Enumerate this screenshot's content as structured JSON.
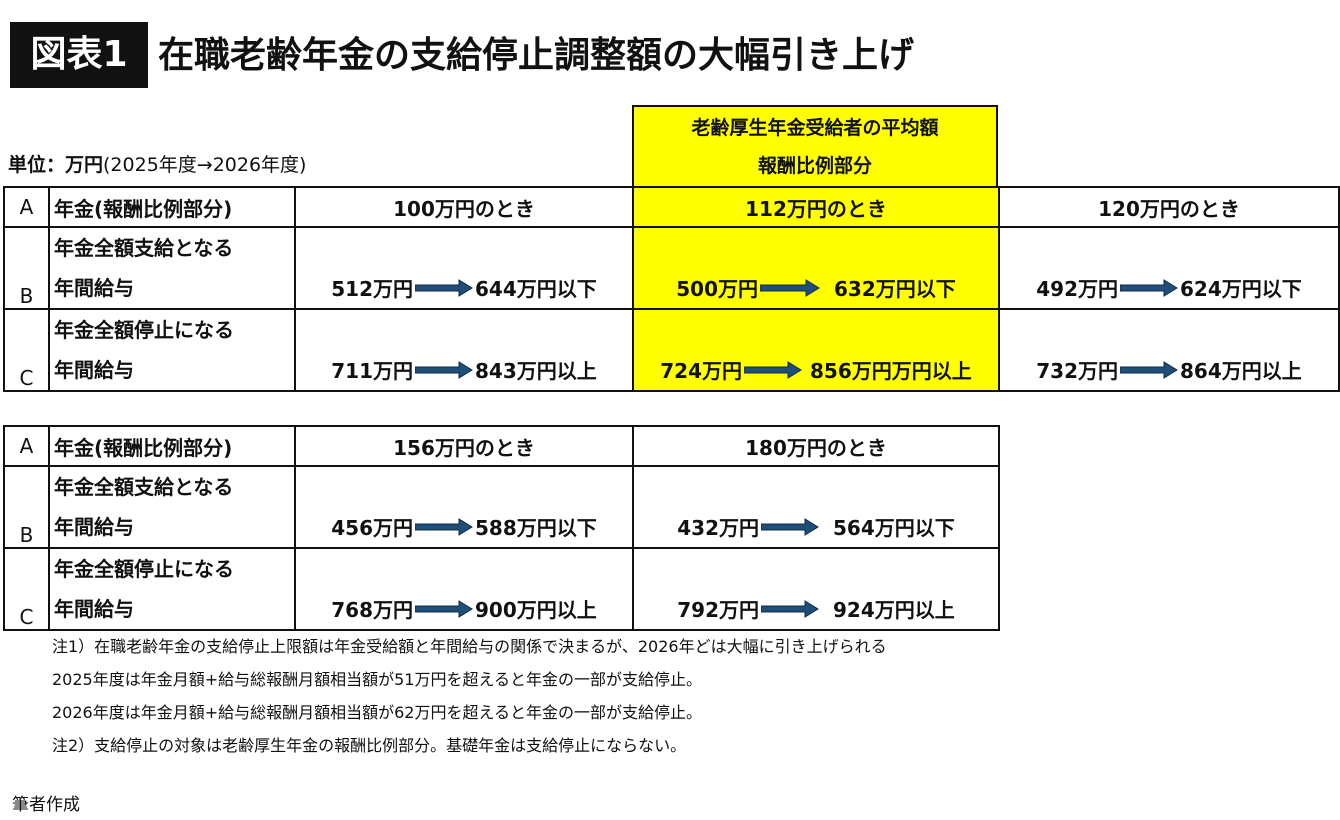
{
  "header": {
    "tag": "図表1",
    "title": "在職老齢年金の支給停止調整額の大幅引き上げ"
  },
  "unit": {
    "bold": "単位：万円",
    "rest": "(2025年度→2026年度)"
  },
  "highlight_header": {
    "line1": "老齢厚生年金受給者の平均額",
    "line2": "報酬比例部分"
  },
  "colors": {
    "highlight": "#ffff00",
    "arrow": "#1f4e79"
  },
  "table1": {
    "row_a": {
      "letter": "A",
      "label": "年金(報酬比例部分)",
      "cols": [
        "100万円のとき",
        "112万円のとき",
        "120万円のとき"
      ]
    },
    "row_b": {
      "letter": "B",
      "label1": "年金全額支給となる",
      "label2": "年間給与",
      "cells": [
        {
          "from": "512万円",
          "to": "644万円以下"
        },
        {
          "from": "500万円",
          "to": "632万円以下"
        },
        {
          "from": "492万円",
          "to": "624万円以下"
        }
      ]
    },
    "row_c": {
      "letter": "C",
      "label1": "年金全額停止になる",
      "label2": "年間給与",
      "cells": [
        {
          "from": "711万円",
          "to": "843万円以上"
        },
        {
          "from": "724万円",
          "to": "856万円万円以上"
        },
        {
          "from": "732万円",
          "to": "864万円以上"
        }
      ]
    }
  },
  "table2": {
    "row_a": {
      "letter": "A",
      "label": "年金(報酬比例部分)",
      "cols": [
        "156万円のとき",
        "180万円のとき"
      ]
    },
    "row_b": {
      "letter": "B",
      "label1": "年金全額支給となる",
      "label2": "年間給与",
      "cells": [
        {
          "from": "456万円",
          "to": "588万円以下"
        },
        {
          "from": "432万円",
          "to": "564万円以下"
        }
      ]
    },
    "row_c": {
      "letter": "C",
      "label1": "年金全額停止になる",
      "label2": "年間給与",
      "cells": [
        {
          "from": "768万円",
          "to": "900万円以上"
        },
        {
          "from": "792万円",
          "to": "924万円以上"
        }
      ]
    }
  },
  "notes": [
    "注1）在職老齢年金の支給停止上限額は年金受給額と年間給与の関係で決まるが、2026年どは大幅に引き上げられる",
    "2025年度は年金月額+給与総報酬月額相当額が51万円を超えると年金の一部が支給停止。",
    "2026年度は年金月額+給与総報酬月額相当額が62万円を超えると年金の一部が支給停止。",
    "注2）支給停止の対象は老齢厚生年金の報酬比例部分。基礎年金は支給停止にならない。"
  ],
  "author": "筆者作成"
}
